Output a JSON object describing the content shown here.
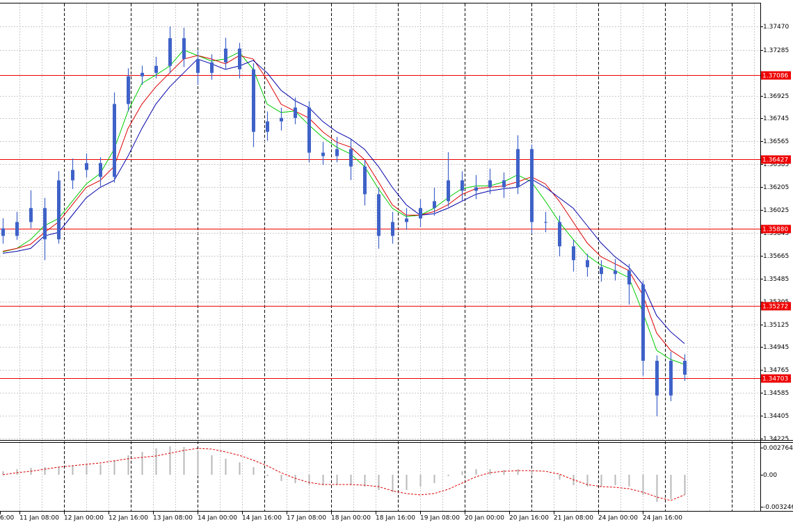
{
  "chart_data": {
    "type": "candlestick",
    "time_labels": [
      "6:00",
      "11 Jan 08:00",
      "12 Jan 00:00",
      "12 Jan 16:00",
      "13 Jan 08:00",
      "14 Jan 00:00",
      "14 Jan 16:00",
      "17 Jan 08:00",
      "18 Jan 00:00",
      "18 Jan 16:00",
      "19 Jan 08:00",
      "20 Jan 00:00",
      "20 Jan 16:00",
      "21 Jan 08:00",
      "24 Jan 00:00",
      "24 Jan 16:00"
    ],
    "color": "#3f62c8",
    "open": [
      1.3588,
      1.35821,
      1.3593,
      1.3604,
      1.35794,
      1.36258,
      1.3634,
      1.36394,
      1.36285,
      1.36859,
      1.37077,
      1.37104,
      1.37159,
      1.37377,
      1.37213,
      1.37104,
      1.37186,
      1.37295,
      1.37132,
      1.3664,
      1.36722,
      1.36749,
      1.36831,
      1.36476,
      1.36449,
      1.36504,
      1.36367,
      1.36149,
      1.35821,
      1.3593,
      1.35958,
      1.3604,
      1.36094,
      1.36258,
      1.36176,
      1.36203,
      1.36258,
      1.36203,
      1.36504,
      1.3593,
      1.3593,
      1.35739,
      1.3563,
      1.35575,
      1.35521,
      1.35548,
      1.35439,
      1.34838,
      1.34565,
      1.34838
    ],
    "high": [
      1.3596,
      1.3601,
      1.3618,
      1.3612,
      1.3633,
      1.3643,
      1.3647,
      1.3644,
      1.3695,
      1.3714,
      1.3716,
      1.3723,
      1.3747,
      1.37459,
      1.3728,
      1.3725,
      1.3738,
      1.3734,
      1.3718,
      1.368,
      1.3683,
      1.3691,
      1.3688,
      1.3656,
      1.366,
      1.3658,
      1.3642,
      1.362,
      1.3601,
      1.3604,
      1.3611,
      1.362,
      1.3648,
      1.3633,
      1.363,
      1.3635,
      1.3632,
      1.36613,
      1.3654,
      1.3601,
      1.3598,
      1.3579,
      1.3568,
      1.3563,
      1.3564,
      1.356,
      1.3547,
      1.3488,
      1.3491,
      1.3489
    ],
    "low": [
      1.3576,
      1.3579,
      1.3588,
      1.3563,
      1.3576,
      1.3619,
      1.3628,
      1.3621,
      1.3624,
      1.368,
      1.3701,
      1.3706,
      1.371,
      1.3715,
      1.3701,
      1.3705,
      1.3713,
      1.3706,
      1.3652,
      1.3657,
      1.3665,
      1.367,
      1.364,
      1.3638,
      1.364,
      1.3626,
      1.3606,
      1.3572,
      1.3576,
      1.3587,
      1.3589,
      1.3598,
      1.3605,
      1.361,
      1.3611,
      1.3615,
      1.3612,
      1.3615,
      1.3584,
      1.3585,
      1.3566,
      1.3554,
      1.355,
      1.3546,
      1.3547,
      1.3528,
      1.3472,
      1.34401,
      1.3452,
      1.3468
    ],
    "close": [
      1.35821,
      1.3593,
      1.3604,
      1.35794,
      1.36258,
      1.3634,
      1.36394,
      1.36285,
      1.36859,
      1.37077,
      1.37104,
      1.37159,
      1.37377,
      1.37213,
      1.37104,
      1.37186,
      1.37295,
      1.37132,
      1.3664,
      1.36722,
      1.36749,
      1.36831,
      1.36476,
      1.36449,
      1.36504,
      1.36367,
      1.36149,
      1.35821,
      1.3593,
      1.35958,
      1.3604,
      1.36094,
      1.36258,
      1.36176,
      1.36203,
      1.36258,
      1.36203,
      1.36504,
      1.3593,
      1.3593,
      1.35739,
      1.3563,
      1.35575,
      1.35521,
      1.35548,
      1.35439,
      1.34838,
      1.34565,
      1.34838,
      1.34729
    ],
    "series": [
      {
        "color": "#00cc00",
        "values": [
          1.35695,
          1.35722,
          1.35793,
          1.35902,
          1.35957,
          1.36094,
          1.3623,
          1.36312,
          1.36503,
          1.36803,
          1.37022,
          1.37087,
          1.37158,
          1.37284,
          1.3724,
          1.37197,
          1.37213,
          1.37267,
          1.37131,
          1.36858,
          1.36792,
          1.36803,
          1.36694,
          1.36596,
          1.36519,
          1.36465,
          1.36367,
          1.36192,
          1.36039,
          1.35973,
          1.35984,
          1.36039,
          1.36121,
          1.36192,
          1.36214,
          1.36214,
          1.36246,
          1.36301,
          1.36246,
          1.36094,
          1.3593,
          1.35793,
          1.35668,
          1.35591,
          1.35548,
          1.35493,
          1.3522,
          1.3492,
          1.34849,
          1.3481
        ]
      },
      {
        "color": "#dd0000",
        "values": [
          1.357,
          1.35722,
          1.35755,
          1.35848,
          1.3593,
          1.36066,
          1.36203,
          1.36257,
          1.36367,
          1.36667,
          1.36858,
          1.36994,
          1.37104,
          1.37213,
          1.3724,
          1.37213,
          1.37175,
          1.3724,
          1.37213,
          1.37049,
          1.36858,
          1.36803,
          1.36749,
          1.3664,
          1.36558,
          1.36519,
          1.36421,
          1.36246,
          1.36066,
          1.35984,
          1.35984,
          1.36012,
          1.36066,
          1.36148,
          1.36192,
          1.36203,
          1.36214,
          1.36246,
          1.36285,
          1.3623,
          1.36094,
          1.3593,
          1.35766,
          1.35657,
          1.35602,
          1.35548,
          1.35356,
          1.35056,
          1.3492,
          1.34849
        ]
      },
      {
        "color": "#0000aa",
        "values": [
          1.35684,
          1.357,
          1.35722,
          1.35821,
          1.35848,
          1.35984,
          1.36121,
          1.36203,
          1.36257,
          1.36448,
          1.36667,
          1.36858,
          1.36994,
          1.37104,
          1.37213,
          1.37175,
          1.37131,
          1.37158,
          1.37202,
          1.37104,
          1.36967,
          1.36885,
          1.36831,
          1.36721,
          1.3664,
          1.36585,
          1.36503,
          1.36367,
          1.36203,
          1.36066,
          1.35984,
          1.35995,
          1.36039,
          1.36094,
          1.36148,
          1.36175,
          1.36192,
          1.36203,
          1.36268,
          1.36203,
          1.36121,
          1.36039,
          1.35902,
          1.35766,
          1.35657,
          1.35575,
          1.35438,
          1.35193,
          1.35067,
          1.34974
        ]
      }
    ],
    "ylim": [
      1.3422,
      1.3765
    ],
    "yticks": [
      {
        "value": 1.3747,
        "label": "1.37470"
      },
      {
        "value": 1.37285,
        "label": "1.37285"
      },
      {
        "value": 1.36925,
        "label": "1.36925"
      },
      {
        "value": 1.36745,
        "label": "1.36745"
      },
      {
        "value": 1.36565,
        "label": "1.36565"
      },
      {
        "value": 1.36385,
        "label": "1.36385"
      },
      {
        "value": 1.36205,
        "label": "1.36205"
      },
      {
        "value": 1.36025,
        "label": "1.36025"
      },
      {
        "value": 1.35845,
        "label": "1.35845"
      },
      {
        "value": 1.35665,
        "label": "1.35665"
      },
      {
        "value": 1.35485,
        "label": "1.35485"
      },
      {
        "value": 1.35305,
        "label": "1.35305"
      },
      {
        "value": 1.35125,
        "label": "1.35125"
      },
      {
        "value": 1.34945,
        "label": "1.34945"
      },
      {
        "value": 1.34765,
        "label": "1.34765"
      },
      {
        "value": 1.34585,
        "label": "1.34585"
      },
      {
        "value": 1.34405,
        "label": "1.34405"
      },
      {
        "value": 1.34225,
        "label": "1.34225"
      }
    ],
    "grid": true,
    "levels": {
      "color": "#ee0000",
      "items": [
        {
          "value": 1.37086,
          "label": "1.37086"
        },
        {
          "value": 1.36427,
          "label": "1.36427"
        },
        {
          "value": 1.3588,
          "label": "1.35880"
        },
        {
          "value": 1.35272,
          "label": "1.35272"
        },
        {
          "value": 1.34703,
          "label": "1.34703"
        }
      ]
    },
    "indicator": {
      "ylim": [
        -0.00368,
        0.00325
      ],
      "yticks": [
        0.002764,
        {
          "value": 0,
          "label": "0.00"
        },
        -0.003246
      ],
      "histogram": {
        "color": "#b8b8b8",
        "values": [
          0.000354,
          0.000566,
          0.000707,
          0.000778,
          0.000778,
          0.000919,
          0.001061,
          0.001061,
          0.001485,
          0.00198,
          0.002333,
          0.002687,
          0.002899,
          0.002828,
          0.002475,
          0.00198,
          0.001626,
          0.001273,
          0.000778,
          -0.000141,
          -0.000636,
          -0.000848,
          -0.00099,
          -0.001061,
          -0.001061,
          -0.001061,
          -0.001202,
          -0.001555,
          -0.001768,
          -0.001555,
          -0.001202,
          -0.000848,
          -0.000141,
          0.000354,
          0.000566,
          0.000566,
          0.000495,
          0.000566,
          0.000354,
          0,
          -0.000495,
          -0.001061,
          -0.001202,
          -0.001202,
          -0.001061,
          -0.001202,
          -0.00205,
          -0.002757,
          -0.002475,
          -0.00205
        ]
      },
      "signal": {
        "color": "#dd0000",
        "values": [
          0,
          0.000212,
          0.000354,
          0.000566,
          0.000778,
          0.000919,
          0.001061,
          0.001202,
          0.001414,
          0.001626,
          0.001768,
          0.001909,
          0.002192,
          0.002475,
          0.002687,
          0.002616,
          0.002333,
          0.00198,
          0.001485,
          0.000919,
          0.000212,
          -0.000354,
          -0.000778,
          -0.00099,
          -0.00099,
          -0.00099,
          -0.001061,
          -0.001202,
          -0.001626,
          -0.001909,
          -0.00205,
          -0.001909,
          -0.001485,
          -0.000848,
          -0.000212,
          0.000212,
          0.000354,
          0.000424,
          0.000424,
          0.000354,
          7.1e-05,
          -0.000495,
          -0.00099,
          -0.001202,
          -0.001273,
          -0.001414,
          -0.001768,
          -0.002262,
          -0.002616,
          -0.00205
        ]
      }
    }
  }
}
